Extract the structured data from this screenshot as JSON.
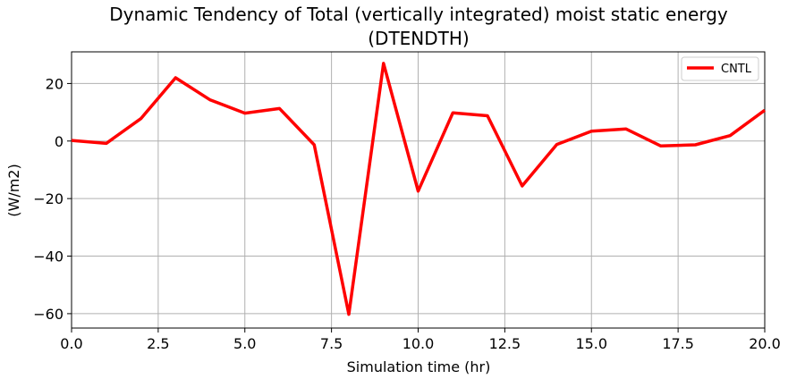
{
  "chart_data": {
    "type": "line",
    "title_line1": "Dynamic Tendency of Total (vertically integrated) moist static energy",
    "title_line2": "(DTENDTH)",
    "xlabel": "Simulation time (hr)",
    "ylabel": "(W/m2)",
    "xlim": [
      0,
      20
    ],
    "ylim": [
      -65,
      31
    ],
    "xticks": [
      0,
      2.5,
      5,
      7.5,
      10,
      12.5,
      15,
      17.5,
      20
    ],
    "xtick_labels": [
      "0.0",
      "2.5",
      "5.0",
      "7.5",
      "10.0",
      "12.5",
      "15.0",
      "17.5",
      "20.0"
    ],
    "yticks": [
      20,
      0,
      -20,
      -40,
      -60
    ],
    "ytick_labels": [
      "20",
      "0",
      "−20",
      "−40",
      "−60"
    ],
    "grid": true,
    "legend_position": "top-right",
    "series": [
      {
        "name": "CNTL",
        "color": "#ff0000",
        "x": [
          0,
          1,
          2,
          3,
          4,
          5,
          6,
          7,
          8,
          9,
          10,
          11,
          12,
          13,
          14,
          15,
          16,
          17,
          18,
          19,
          20
        ],
        "y": [
          0.2,
          -0.8,
          7.8,
          22.0,
          14.3,
          9.7,
          11.3,
          -1.3,
          -60.2,
          27.0,
          -17.4,
          9.8,
          8.8,
          -15.6,
          -1.2,
          3.4,
          4.2,
          -1.7,
          -1.3,
          1.9,
          10.7
        ]
      }
    ]
  }
}
